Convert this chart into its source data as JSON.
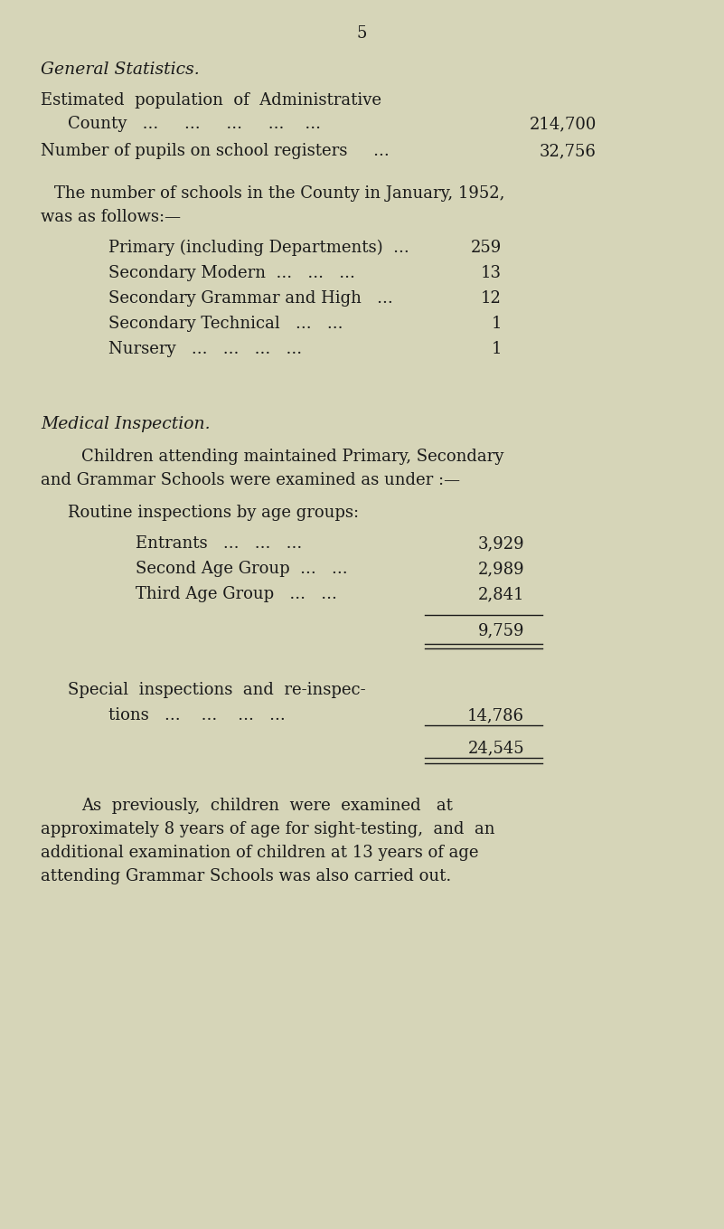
{
  "bg_color": "#d6d5b8",
  "text_color": "#1a1a1a",
  "page_number": "5",
  "section1_heading": "General Statistics.",
  "section2_heading": "Medical Inspection.",
  "subtotal": "9,759",
  "special_value": "14,786",
  "total": "24,545"
}
